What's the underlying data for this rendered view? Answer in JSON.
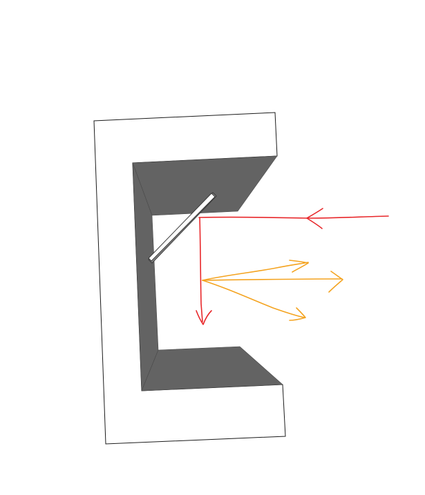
{
  "diagram": {
    "colors": {
      "background": "#ffffff",
      "body_face": "#ffffff",
      "body_outline": "#1a1a1a",
      "cavity_shade": "#636363",
      "cavity_back": "#ffffff",
      "mirror_face": "#ffffff",
      "mirror_edge": "#3a3a3a",
      "incident_ray": "#e8272a",
      "scattered_rays": "#f4a31f"
    },
    "elements": [
      "c-shaped-block",
      "slanted-mirror",
      "incident-red-ray",
      "reflected-red-ray",
      "orange-arrows"
    ]
  }
}
